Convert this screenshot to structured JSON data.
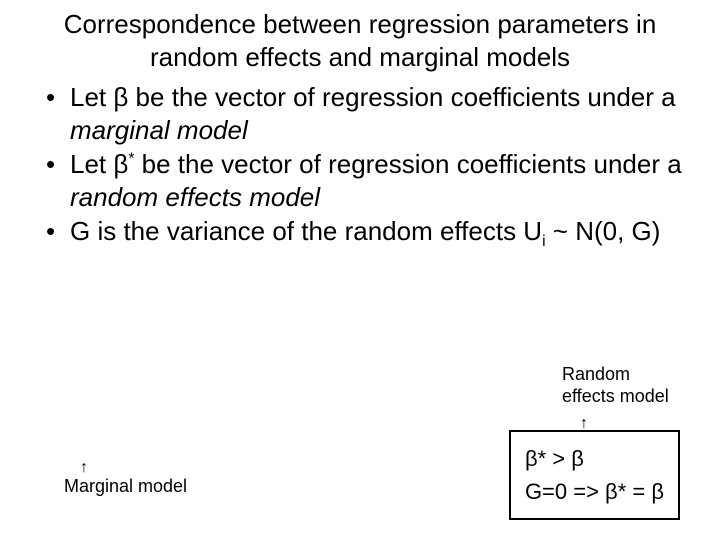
{
  "title": "Correspondence between regression parameters in random effects and marginal models",
  "bullet1_a": "Let β be the vector of regression coefficients under a ",
  "bullet1_b": "marginal model",
  "bullet2_a": "Let β",
  "bullet2_sup": "*",
  "bullet2_b": " be the vector of regression coefficients under a ",
  "bullet2_c": "random effects model",
  "bullet3_a": "G is the variance of the random effects U",
  "bullet3_sub": "i",
  "bullet3_b": " ~ N(0, G)",
  "label_re": "Random effects model",
  "label_marginal": "Marginal model",
  "box_line1": "β* > β",
  "box_line2": "G=0 => β* = β",
  "colors": {
    "text": "#000000",
    "bg": "#ffffff",
    "border": "#000000"
  },
  "fonts": {
    "title_size": 26,
    "body_size": 26,
    "label_size": 18,
    "box_size": 22
  }
}
